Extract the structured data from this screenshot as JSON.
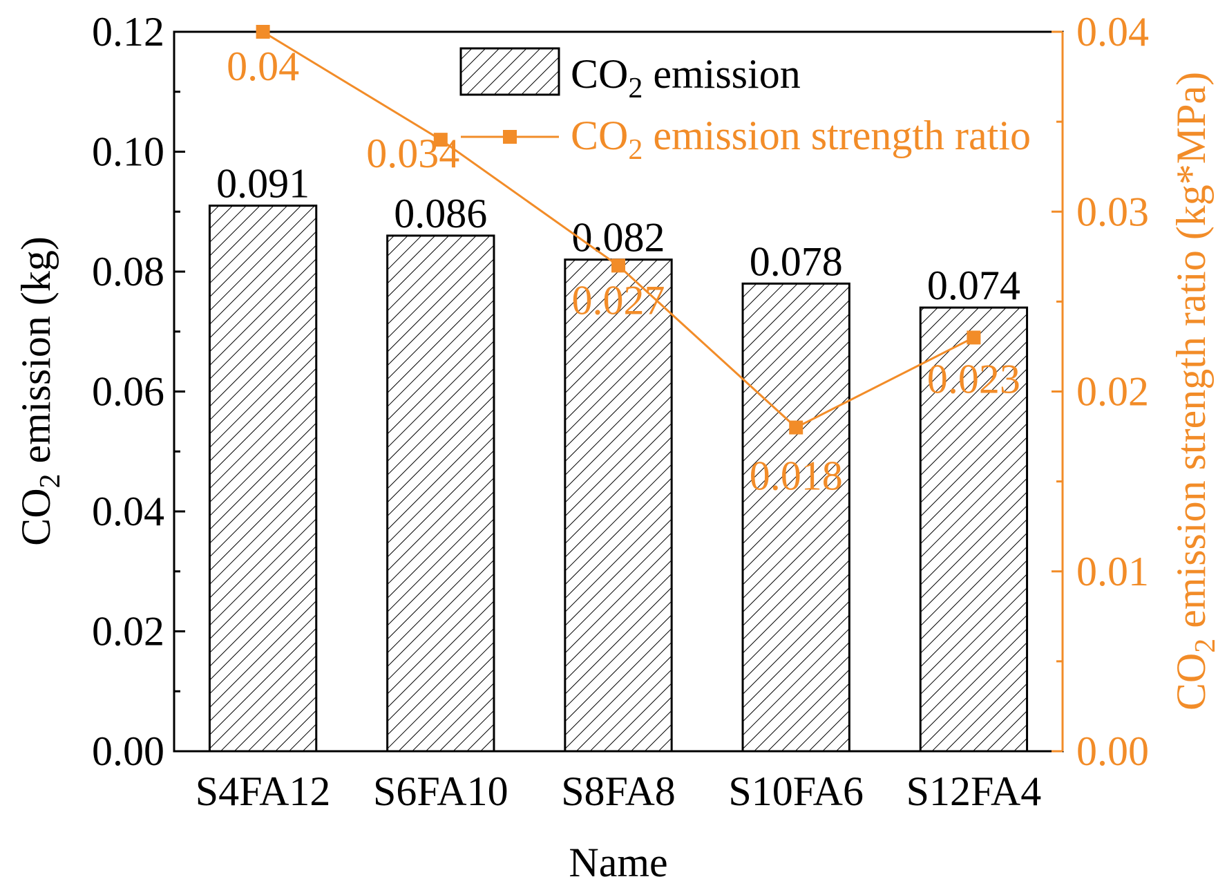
{
  "chart_data": {
    "type": "bar",
    "categories": [
      "S4FA12",
      "S6FA10",
      "S8FA8",
      "S10FA6",
      "S12FA4"
    ],
    "xlabel": "Name",
    "ylabel": {
      "prefix": "CO",
      "sub": "2",
      "suffix": " emission (kg)"
    },
    "y2label": {
      "prefix": "CO",
      "sub": "2",
      "suffix": " emission strength ratio (kg*MPa)"
    },
    "ylim": [
      0,
      0.12
    ],
    "y2lim": [
      0,
      0.04
    ],
    "yticks": [
      "0.00",
      "0.02",
      "0.04",
      "0.06",
      "0.08",
      "0.10",
      "0.12"
    ],
    "y2ticks": [
      "0.00",
      "0.01",
      "0.02",
      "0.03",
      "0.04"
    ],
    "series": [
      {
        "name": {
          "prefix": "CO",
          "sub": "2",
          "suffix": " emission"
        },
        "type": "bar",
        "axis": "left",
        "values": [
          0.091,
          0.086,
          0.082,
          0.078,
          0.074
        ],
        "labels": [
          "0.091",
          "0.086",
          "0.082",
          "0.078",
          "0.074"
        ],
        "color": "#000000"
      },
      {
        "name": {
          "prefix": "CO",
          "sub": "2",
          "suffix": " emission strength ratio"
        },
        "type": "line",
        "axis": "right",
        "values": [
          0.04,
          0.034,
          0.027,
          0.018,
          0.023
        ],
        "labels": [
          "0.04",
          "0.034",
          "0.027",
          "0.018",
          "0.023"
        ],
        "color": "#f28c28"
      }
    ],
    "legend": "top-right",
    "grid": false
  }
}
